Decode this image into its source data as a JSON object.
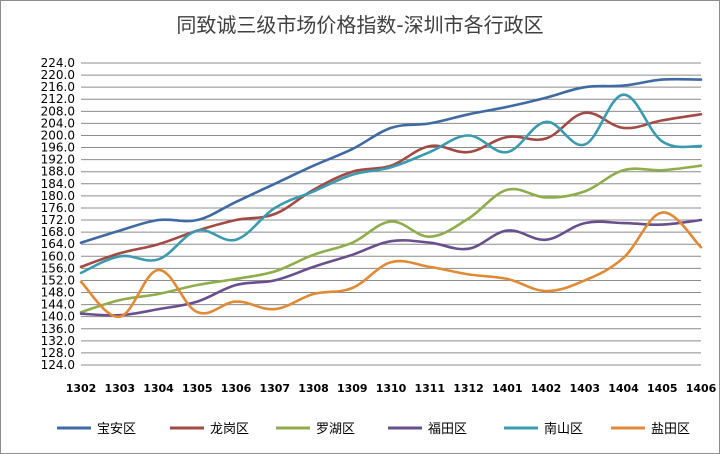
{
  "chart_data": {
    "type": "line",
    "title": "同致诚三级市场价格指数-深圳市各行政区",
    "xlabel": "",
    "ylabel": "",
    "categories": [
      "1302",
      "1303",
      "1304",
      "1305",
      "1306",
      "1307",
      "1308",
      "1309",
      "1310",
      "1311",
      "1312",
      "1401",
      "1402",
      "1403",
      "1404",
      "1405",
      "1406"
    ],
    "ylim": [
      124,
      224
    ],
    "yticks": [
      "224.0",
      "220.0",
      "216.0",
      "212.0",
      "208.0",
      "204.0",
      "200.0",
      "196.0",
      "192.0",
      "188.0",
      "184.0",
      "180.0",
      "176.0",
      "172.0",
      "168.0",
      "164.0",
      "160.0",
      "156.0",
      "152.0",
      "148.0",
      "144.0",
      "140.0",
      "136.0",
      "132.0",
      "128.0",
      "124.0"
    ],
    "grid": true,
    "legend_position": "bottom",
    "series": [
      {
        "name": "宝安区",
        "color": "#3f6aa3",
        "values": [
          164.5,
          168.5,
          172.0,
          172.0,
          178.0,
          184.0,
          190.0,
          195.5,
          202.5,
          204.0,
          207.0,
          209.5,
          212.5,
          216.0,
          216.5,
          218.5,
          218.5
        ]
      },
      {
        "name": "龙岗区",
        "color": "#a34a45",
        "values": [
          156.5,
          161.0,
          164.0,
          168.5,
          172.0,
          174.0,
          182.0,
          188.0,
          190.0,
          196.5,
          194.5,
          199.5,
          199.0,
          207.5,
          202.5,
          205.0,
          207.0
        ]
      },
      {
        "name": "罗湖区",
        "color": "#8ead4b",
        "values": [
          141.5,
          145.5,
          147.5,
          150.5,
          152.5,
          155.0,
          160.5,
          164.5,
          171.5,
          166.5,
          172.5,
          182.0,
          179.5,
          181.5,
          188.5,
          188.5,
          190.0
        ]
      },
      {
        "name": "福田区",
        "color": "#6a4f8e",
        "values": [
          141.0,
          140.5,
          142.5,
          145.0,
          150.5,
          152.0,
          156.5,
          160.5,
          165.0,
          164.5,
          162.5,
          168.5,
          165.5,
          171.0,
          171.0,
          170.5,
          172.0
        ]
      },
      {
        "name": "南山区",
        "color": "#3a9bb0",
        "values": [
          154.5,
          160.0,
          159.0,
          168.5,
          165.5,
          176.0,
          181.5,
          187.0,
          189.5,
          194.5,
          200.0,
          194.5,
          204.5,
          197.0,
          213.5,
          198.0,
          196.5
        ]
      },
      {
        "name": "盐田区",
        "color": "#e08a35",
        "values": [
          151.5,
          140.0,
          155.5,
          141.5,
          145.0,
          142.5,
          147.5,
          149.5,
          158.0,
          156.5,
          154.0,
          152.5,
          148.5,
          152.0,
          159.5,
          174.5,
          163.0
        ]
      }
    ]
  }
}
